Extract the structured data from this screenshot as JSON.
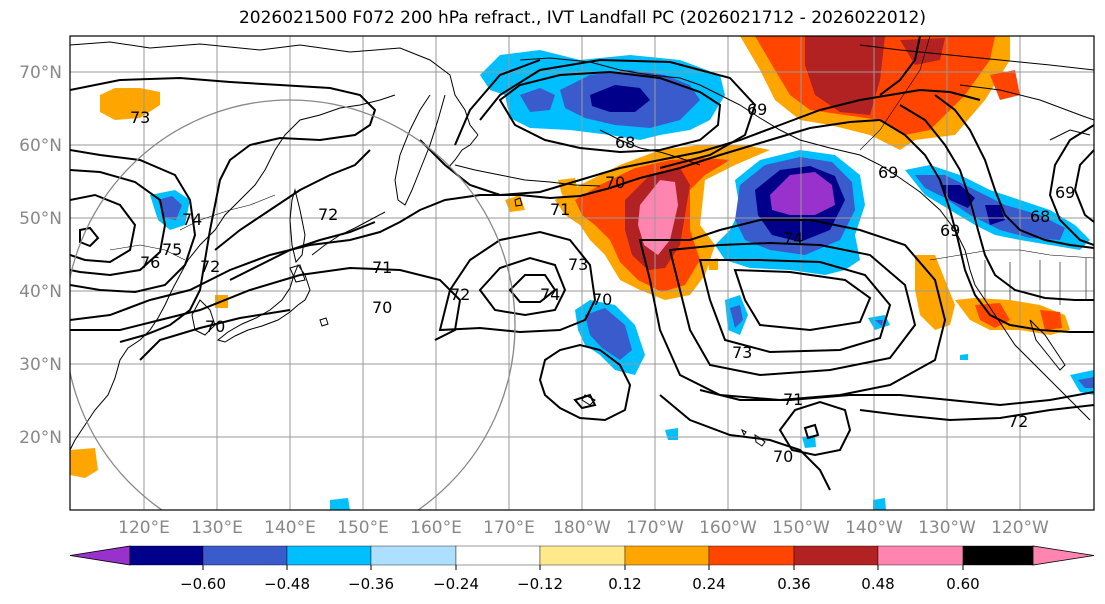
{
  "title": "2026021500 F072 200 hPa refract., IVT Landfall PC (2026021712 - 2026022012)",
  "lat_labels": [
    "70°N",
    "60°N",
    "50°N",
    "40°N",
    "30°N",
    "20°N"
  ],
  "lon_labels": [
    "120°E",
    "130°E",
    "140°E",
    "150°E",
    "160°E",
    "170°E",
    "180°W",
    "170°W",
    "160°W",
    "150°W",
    "140°W",
    "130°W",
    "120°W"
  ],
  "colorbar": {
    "colors": [
      "#9932CC",
      "#00008B",
      "#3A5BCC",
      "#00BFFF",
      "#ADDFFF",
      "#FFFFFF",
      "#FFE98A",
      "#FFA500",
      "#FF4500",
      "#B22222",
      "#FF85B0"
    ],
    "tick_labels": [
      "−0.60",
      "−0.48",
      "−0.36",
      "−0.24",
      "−0.12",
      "0.12",
      "0.24",
      "0.36",
      "0.48",
      "0.60"
    ]
  },
  "contour_labels": [
    "73",
    "76",
    "75",
    "74",
    "72",
    "70",
    "72",
    "71",
    "70",
    "72",
    "74",
    "73",
    "70",
    "68",
    "69",
    "70",
    "71",
    "74",
    "69",
    "69",
    "68",
    "69",
    "73",
    "71",
    "70",
    "72"
  ]
}
